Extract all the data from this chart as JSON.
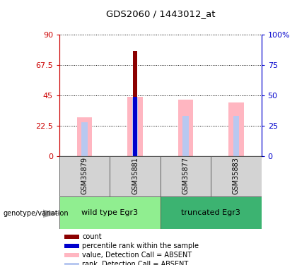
{
  "title": "GDS2060 / 1443012_at",
  "samples": [
    "GSM35879",
    "GSM35881",
    "GSM35877",
    "GSM35883"
  ],
  "ylim_left": [
    0,
    90
  ],
  "ylim_right": [
    0,
    100
  ],
  "yticks_left": [
    0,
    22.5,
    45,
    67.5,
    90
  ],
  "yticks_right": [
    0,
    25,
    50,
    75,
    100
  ],
  "ytick_labels_left": [
    "0",
    "22.5",
    "45",
    "67.5",
    "90"
  ],
  "ytick_labels_right": [
    "0",
    "25",
    "50",
    "75",
    "100%"
  ],
  "value_bars": [
    29,
    44,
    42,
    40
  ],
  "value_bar_color": "#ffb6c1",
  "rank_bars": [
    25,
    43,
    30,
    30
  ],
  "rank_bar_color": "#b8c8f0",
  "count_bars": [
    0,
    78,
    0,
    0
  ],
  "count_bar_color": "#8b0000",
  "percentile_bars": [
    0,
    44,
    0,
    0
  ],
  "percentile_bar_color": "#0000cd",
  "left_axis_color": "#cc0000",
  "right_axis_color": "#0000cc",
  "group1_label": "wild type Egr3",
  "group2_label": "truncated Egr3",
  "group1_color": "#90ee90",
  "group2_color": "#3cb371",
  "genotype_label": "genotype/variation",
  "legend_items": [
    {
      "color": "#8b0000",
      "label": "count"
    },
    {
      "color": "#0000cd",
      "label": "percentile rank within the sample"
    },
    {
      "color": "#ffb6c1",
      "label": "value, Detection Call = ABSENT"
    },
    {
      "color": "#b8c8f0",
      "label": "rank, Detection Call = ABSENT"
    }
  ]
}
